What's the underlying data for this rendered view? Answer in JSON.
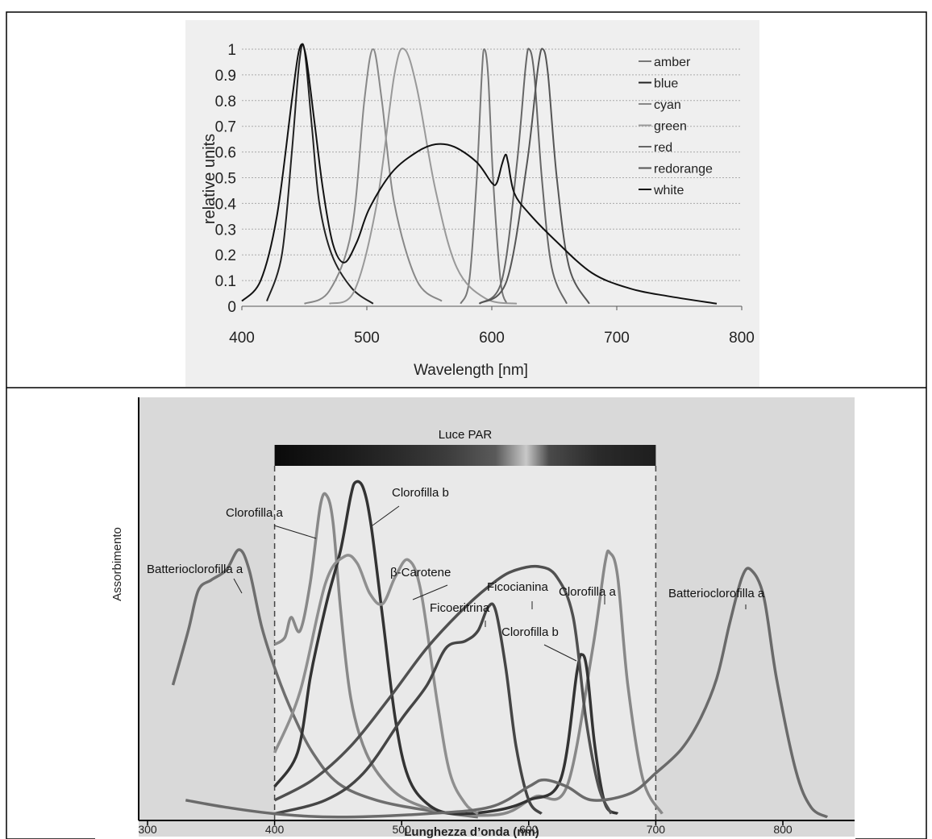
{
  "chart_data": [
    {
      "type": "line",
      "title": "",
      "xlabel": "Wavelength [nm]",
      "ylabel": "relative units",
      "xlim": [
        400,
        800
      ],
      "ylim": [
        0,
        1
      ],
      "x_ticks": [
        "400",
        "500",
        "600",
        "700",
        "800"
      ],
      "y_ticks": [
        "0",
        "0.1",
        "0.2",
        "0.3",
        "0.4",
        "0.5",
        "0.6",
        "0.7",
        "0.8",
        "0.9",
        "1"
      ],
      "grid": true,
      "legend_position": "top-right",
      "series": [
        {
          "name": "amber",
          "color": "#777777",
          "points": [
            [
              575,
              0.01
            ],
            [
              582,
              0.1
            ],
            [
              588,
              0.5
            ],
            [
              592,
              0.9
            ],
            [
              594,
              1.0
            ],
            [
              597,
              0.9
            ],
            [
              601,
              0.5
            ],
            [
              607,
              0.1
            ],
            [
              612,
              0.01
            ]
          ]
        },
        {
          "name": "blue",
          "color": "#222222",
          "points": [
            [
              420,
              0.02
            ],
            [
              432,
              0.2
            ],
            [
              440,
              0.6
            ],
            [
              446,
              0.95
            ],
            [
              450,
              1.0
            ],
            [
              456,
              0.7
            ],
            [
              462,
              0.4
            ],
            [
              472,
              0.2
            ],
            [
              488,
              0.07
            ],
            [
              505,
              0.01
            ]
          ]
        },
        {
          "name": "cyan",
          "color": "#888888",
          "points": [
            [
              450,
              0.01
            ],
            [
              470,
              0.06
            ],
            [
              488,
              0.3
            ],
            [
              498,
              0.8
            ],
            [
              505,
              1.0
            ],
            [
              512,
              0.8
            ],
            [
              522,
              0.4
            ],
            [
              540,
              0.1
            ],
            [
              560,
              0.02
            ]
          ]
        },
        {
          "name": "green",
          "color": "#999999",
          "points": [
            [
              470,
              0.01
            ],
            [
              490,
              0.06
            ],
            [
              508,
              0.4
            ],
            [
              522,
              0.9
            ],
            [
              530,
              1.0
            ],
            [
              540,
              0.85
            ],
            [
              555,
              0.45
            ],
            [
              572,
              0.15
            ],
            [
              595,
              0.03
            ],
            [
              620,
              0.01
            ]
          ]
        },
        {
          "name": "red",
          "color": "#666666",
          "points": [
            [
              590,
              0.01
            ],
            [
              608,
              0.1
            ],
            [
              620,
              0.55
            ],
            [
              627,
              0.93
            ],
            [
              630,
              1.0
            ],
            [
              634,
              0.9
            ],
            [
              640,
              0.5
            ],
            [
              648,
              0.15
            ],
            [
              660,
              0.01
            ]
          ]
        },
        {
          "name": "redorange",
          "color": "#555555",
          "points": [
            [
              590,
              0.01
            ],
            [
              612,
              0.1
            ],
            [
              628,
              0.55
            ],
            [
              637,
              0.93
            ],
            [
              641,
              1.0
            ],
            [
              645,
              0.9
            ],
            [
              652,
              0.5
            ],
            [
              662,
              0.15
            ],
            [
              678,
              0.01
            ]
          ]
        },
        {
          "name": "white",
          "color": "#111111",
          "points": [
            [
              400,
              0.02
            ],
            [
              415,
              0.1
            ],
            [
              428,
              0.35
            ],
            [
              440,
              0.8
            ],
            [
              446,
              1.0
            ],
            [
              451,
              0.98
            ],
            [
              458,
              0.72
            ],
            [
              465,
              0.45
            ],
            [
              473,
              0.24
            ],
            [
              482,
              0.17
            ],
            [
              492,
              0.25
            ],
            [
              502,
              0.38
            ],
            [
              520,
              0.52
            ],
            [
              540,
              0.6
            ],
            [
              555,
              0.63
            ],
            [
              570,
              0.62
            ],
            [
              588,
              0.56
            ],
            [
              600,
              0.48
            ],
            [
              604,
              0.48
            ],
            [
              608,
              0.55
            ],
            [
              611,
              0.59
            ],
            [
              613,
              0.56
            ],
            [
              618,
              0.44
            ],
            [
              630,
              0.36
            ],
            [
              650,
              0.26
            ],
            [
              680,
              0.13
            ],
            [
              710,
              0.07
            ],
            [
              740,
              0.04
            ],
            [
              780,
              0.01
            ]
          ]
        }
      ]
    },
    {
      "type": "line",
      "title": "",
      "xlabel": "Lunghezza d’onda (nm)",
      "ylabel": "Assorbimento",
      "xlim": [
        280,
        860
      ],
      "x_ticks": [
        "300",
        "400",
        "500",
        "600",
        "700",
        "800"
      ],
      "y_relative_max": 1,
      "band": {
        "label": "Luce PAR",
        "from": 400,
        "to": 700
      },
      "annotations": [
        {
          "label": "Batterioclorofilla a",
          "series": "Batterioclorofilla a (sinistra)"
        },
        {
          "label": "Clorofilla a",
          "series": "Clorofilla a (blu)"
        },
        {
          "label": "Clorofilla b",
          "series": "Clorofilla b (blu)"
        },
        {
          "label": "β-Carotene",
          "series": "β-Carotene"
        },
        {
          "label": "Ficocianina",
          "series": "Ficocianina"
        },
        {
          "label": "Ficoeritrina",
          "series": "Ficoeritrina"
        },
        {
          "label": "Clorofilla a",
          "series": "Clorofilla a (rosso)"
        },
        {
          "label": "Clorofilla b",
          "series": "Clorofilla b (rosso)"
        },
        {
          "label": "Batterioclorofilla a",
          "series": "Batterioclorofilla a (destra)"
        }
      ],
      "series": [
        {
          "color": "#6e6e6e",
          "points": [
            [
              320,
              0.4
            ],
            [
              332,
              0.56
            ],
            [
              340,
              0.68
            ],
            [
              350,
              0.71
            ],
            [
              362,
              0.74
            ],
            [
              372,
              0.8
            ],
            [
              380,
              0.74
            ],
            [
              390,
              0.57
            ],
            [
              402,
              0.43
            ],
            [
              415,
              0.31
            ],
            [
              430,
              0.2
            ],
            [
              450,
              0.11
            ],
            [
              480,
              0.06
            ],
            [
              520,
              0.03
            ],
            [
              560,
              0.01
            ]
          ]
        },
        {
          "color": "#888888",
          "points": [
            [
              400,
              0.52
            ],
            [
              408,
              0.54
            ],
            [
              413,
              0.6
            ],
            [
              420,
              0.56
            ],
            [
              428,
              0.7
            ],
            [
              436,
              0.93
            ],
            [
              441,
              0.96
            ],
            [
              446,
              0.88
            ],
            [
              452,
              0.62
            ],
            [
              460,
              0.36
            ],
            [
              472,
              0.2
            ],
            [
              490,
              0.1
            ],
            [
              510,
              0.05
            ],
            [
              540,
              0.02
            ],
            [
              580,
              0.02
            ],
            [
              605,
              0.07
            ],
            [
              630,
              0.1
            ],
            [
              650,
              0.5
            ],
            [
              660,
              0.76
            ],
            [
              664,
              0.79
            ],
            [
              670,
              0.72
            ],
            [
              678,
              0.4
            ],
            [
              690,
              0.12
            ],
            [
              705,
              0.02
            ]
          ]
        },
        {
          "color": "#333333",
          "points": [
            [
              400,
              0.1
            ],
            [
              418,
              0.2
            ],
            [
              428,
              0.42
            ],
            [
              434,
              0.53
            ],
            [
              442,
              0.66
            ],
            [
              452,
              0.8
            ],
            [
              460,
              0.96
            ],
            [
              464,
              1.0
            ],
            [
              470,
              0.98
            ],
            [
              476,
              0.87
            ],
            [
              485,
              0.6
            ],
            [
              495,
              0.3
            ],
            [
              505,
              0.13
            ],
            [
              520,
              0.05
            ],
            [
              540,
              0.02
            ],
            [
              575,
              0.03
            ],
            [
              600,
              0.06
            ],
            [
              625,
              0.12
            ],
            [
              638,
              0.44
            ],
            [
              642,
              0.49
            ],
            [
              646,
              0.44
            ],
            [
              652,
              0.22
            ],
            [
              660,
              0.05
            ],
            [
              670,
              0.02
            ]
          ]
        },
        {
          "color": "#8f8f8f",
          "points": [
            [
              400,
              0.2
            ],
            [
              420,
              0.38
            ],
            [
              440,
              0.7
            ],
            [
              455,
              0.78
            ],
            [
              465,
              0.76
            ],
            [
              475,
              0.67
            ],
            [
              485,
              0.64
            ],
            [
              495,
              0.72
            ],
            [
              505,
              0.77
            ],
            [
              515,
              0.68
            ],
            [
              528,
              0.35
            ],
            [
              538,
              0.14
            ],
            [
              550,
              0.05
            ],
            [
              560,
              0.02
            ]
          ]
        },
        {
          "color": "#505050",
          "points": [
            [
              400,
              0.06
            ],
            [
              430,
              0.12
            ],
            [
              460,
              0.22
            ],
            [
              490,
              0.36
            ],
            [
              520,
              0.51
            ],
            [
              550,
              0.63
            ],
            [
              575,
              0.71
            ],
            [
              590,
              0.74
            ],
            [
              608,
              0.75
            ],
            [
              622,
              0.72
            ],
            [
              635,
              0.6
            ],
            [
              645,
              0.3
            ],
            [
              655,
              0.1
            ],
            [
              665,
              0.02
            ]
          ]
        },
        {
          "color": "#454545",
          "points": [
            [
              400,
              0.02
            ],
            [
              440,
              0.06
            ],
            [
              470,
              0.14
            ],
            [
              500,
              0.3
            ],
            [
              520,
              0.4
            ],
            [
              535,
              0.51
            ],
            [
              550,
              0.53
            ],
            [
              560,
              0.56
            ],
            [
              568,
              0.63
            ],
            [
              574,
              0.62
            ],
            [
              582,
              0.45
            ],
            [
              590,
              0.22
            ],
            [
              600,
              0.06
            ],
            [
              610,
              0.02
            ]
          ]
        },
        {
          "color": "#6a6a6a",
          "points": [
            [
              330,
              0.06
            ],
            [
              360,
              0.04
            ],
            [
              400,
              0.02
            ],
            [
              450,
              0.01
            ],
            [
              520,
              0.02
            ],
            [
              570,
              0.04
            ],
            [
              600,
              0.1
            ],
            [
              612,
              0.12
            ],
            [
              630,
              0.1
            ],
            [
              650,
              0.06
            ],
            [
              680,
              0.08
            ],
            [
              700,
              0.14
            ],
            [
              720,
              0.21
            ],
            [
              735,
              0.3
            ],
            [
              748,
              0.42
            ],
            [
              758,
              0.58
            ],
            [
              768,
              0.72
            ],
            [
              775,
              0.74
            ],
            [
              785,
              0.66
            ],
            [
              795,
              0.42
            ],
            [
              810,
              0.15
            ],
            [
              822,
              0.04
            ],
            [
              835,
              0.01
            ]
          ]
        }
      ]
    }
  ]
}
